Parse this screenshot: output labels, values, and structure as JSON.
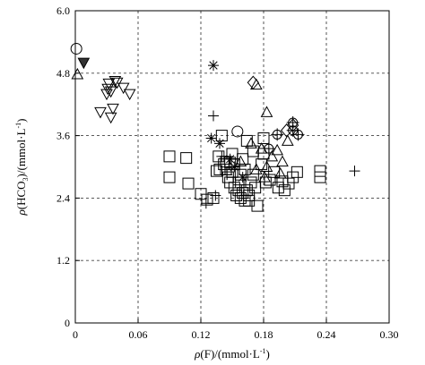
{
  "chart_data": {
    "type": "scatter",
    "xlabel": {
      "text_a": "ρ",
      "text_b": "(F)/(mmol·L",
      "text_sup": "-1",
      "text_c": ")"
    },
    "ylabel": {
      "text_a": "ρ",
      "text_b": "(HCO",
      "text_sub": "3",
      "text_c": ")/(mmol·L",
      "text_sup": "-1",
      "text_c2": ")"
    },
    "xlim": [
      0,
      0.3
    ],
    "ylim": [
      0,
      6.0
    ],
    "x_ticks": [
      0,
      0.06,
      0.12,
      0.18,
      0.24,
      0.3
    ],
    "x_tick_labels": [
      "0",
      "0.06",
      "0.12",
      "0.18",
      "0.24",
      "0.30"
    ],
    "y_ticks": [
      0,
      1.2,
      2.4,
      3.6,
      4.8,
      6.0
    ],
    "y_tick_labels": [
      "0",
      "1.2",
      "2.4",
      "3.6",
      "4.8",
      "6.0"
    ],
    "grid": true,
    "series": [
      {
        "marker": "circle",
        "points": [
          [
            0.001,
            5.27
          ],
          [
            0.155,
            3.68
          ]
        ]
      },
      {
        "marker": "triangle-down-filled",
        "points": [
          [
            0.008,
            5.0
          ]
        ]
      },
      {
        "marker": "triangle-up",
        "points": [
          [
            0.002,
            4.78
          ],
          [
            0.173,
            4.58
          ],
          [
            0.183,
            4.05
          ],
          [
            0.168,
            3.45
          ],
          [
            0.178,
            3.35
          ],
          [
            0.193,
            3.32
          ],
          [
            0.188,
            3.2
          ],
          [
            0.198,
            3.1
          ],
          [
            0.203,
            3.5
          ],
          [
            0.183,
            3.0
          ],
          [
            0.173,
            2.95
          ],
          [
            0.196,
            2.87
          ],
          [
            0.181,
            2.8
          ],
          [
            0.158,
            3.1
          ]
        ]
      },
      {
        "marker": "triangle-down",
        "points": [
          [
            0.024,
            4.05
          ],
          [
            0.038,
            4.65
          ],
          [
            0.046,
            4.52
          ],
          [
            0.052,
            4.4
          ],
          [
            0.031,
            4.5
          ],
          [
            0.034,
            4.45
          ],
          [
            0.03,
            4.4
          ],
          [
            0.036,
            4.12
          ],
          [
            0.034,
            3.95
          ],
          [
            0.032,
            4.6
          ],
          [
            0.04,
            4.62
          ]
        ]
      },
      {
        "marker": "diamond",
        "points": [
          [
            0.17,
            4.62
          ],
          [
            0.208,
            3.8
          ],
          [
            0.202,
            3.7
          ]
        ]
      },
      {
        "marker": "circle-plus",
        "points": [
          [
            0.208,
            3.85
          ],
          [
            0.208,
            3.7
          ],
          [
            0.213,
            3.62
          ],
          [
            0.193,
            3.62
          ],
          [
            0.185,
            3.35
          ]
        ]
      },
      {
        "marker": "asterisk",
        "points": [
          [
            0.132,
            4.95
          ],
          [
            0.13,
            3.55
          ],
          [
            0.138,
            3.45
          ],
          [
            0.148,
            3.15
          ],
          [
            0.152,
            3.0
          ],
          [
            0.16,
            2.8
          ]
        ]
      },
      {
        "marker": "plus",
        "points": [
          [
            0.132,
            3.98
          ],
          [
            0.267,
            2.92
          ],
          [
            0.14,
            3.2
          ],
          [
            0.125,
            2.3
          ],
          [
            0.134,
            2.45
          ],
          [
            0.145,
            2.85
          ]
        ]
      },
      {
        "marker": "square",
        "points": [
          [
            0.09,
            3.2
          ],
          [
            0.09,
            2.8
          ],
          [
            0.106,
            3.17
          ],
          [
            0.108,
            2.68
          ],
          [
            0.12,
            2.48
          ],
          [
            0.126,
            2.37
          ],
          [
            0.132,
            2.4
          ],
          [
            0.135,
            2.92
          ],
          [
            0.137,
            3.2
          ],
          [
            0.14,
            3.6
          ],
          [
            0.142,
            3.05
          ],
          [
            0.144,
            2.95
          ],
          [
            0.146,
            2.8
          ],
          [
            0.148,
            3.08
          ],
          [
            0.15,
            2.9
          ],
          [
            0.152,
            2.6
          ],
          [
            0.154,
            2.45
          ],
          [
            0.156,
            2.7
          ],
          [
            0.158,
            2.4
          ],
          [
            0.16,
            2.5
          ],
          [
            0.162,
            2.95
          ],
          [
            0.164,
            2.55
          ],
          [
            0.166,
            2.35
          ],
          [
            0.168,
            2.7
          ],
          [
            0.17,
            2.85
          ],
          [
            0.172,
            2.6
          ],
          [
            0.174,
            2.25
          ],
          [
            0.178,
            3.05
          ],
          [
            0.18,
            3.25
          ],
          [
            0.182,
            2.7
          ],
          [
            0.186,
            2.75
          ],
          [
            0.19,
            2.9
          ],
          [
            0.194,
            2.6
          ],
          [
            0.198,
            2.72
          ],
          [
            0.2,
            2.55
          ],
          [
            0.204,
            2.68
          ],
          [
            0.208,
            2.8
          ],
          [
            0.212,
            2.9
          ],
          [
            0.15,
            3.25
          ],
          [
            0.16,
            3.15
          ],
          [
            0.148,
            2.7
          ],
          [
            0.17,
            3.3
          ],
          [
            0.156,
            2.55
          ],
          [
            0.162,
            2.35
          ],
          [
            0.144,
            3.1
          ],
          [
            0.138,
            2.95
          ],
          [
            0.234,
            2.92
          ],
          [
            0.234,
            2.8
          ],
          [
            0.18,
            3.55
          ],
          [
            0.164,
            3.5
          ],
          [
            0.152,
            3.05
          ],
          [
            0.158,
            2.85
          ],
          [
            0.166,
            2.45
          ]
        ]
      }
    ]
  }
}
